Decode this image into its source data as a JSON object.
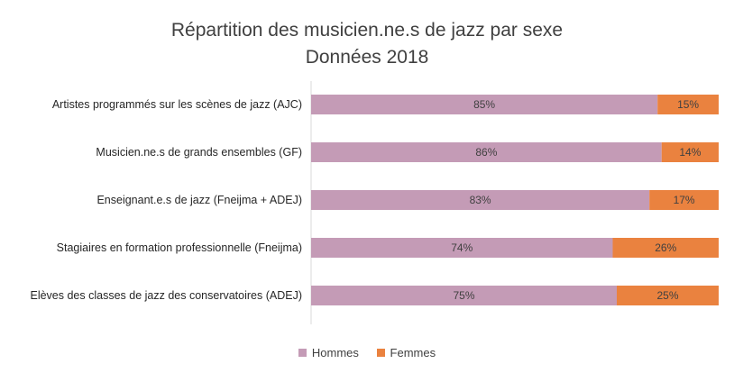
{
  "chart_data": {
    "type": "bar",
    "orientation": "horizontal",
    "stacked": true,
    "title": "Répartition des musicien.ne.s de jazz par sexe",
    "subtitle": "Données 2018",
    "categories": [
      "Artistes programmés sur les scènes de jazz (AJC)",
      "Musicien.ne.s de grands ensembles (GF)",
      "Enseignant.e.s de jazz (Fneijma + ADEJ)",
      "Stagiaires en formation professionnelle (Fneijma)",
      "Elèves des classes de jazz des conservatoires (ADEJ)"
    ],
    "series": [
      {
        "name": "Hommes",
        "values": [
          85,
          86,
          83,
          74,
          75
        ],
        "labels": [
          "85%",
          "86%",
          "83%",
          "74%",
          "75%"
        ],
        "color": "#c49bb6"
      },
      {
        "name": "Femmes",
        "values": [
          15,
          14,
          17,
          26,
          25
        ],
        "labels": [
          "15%",
          "14%",
          "17%",
          "26%",
          "25%"
        ],
        "color": "#ea823f"
      }
    ],
    "xlim": [
      0,
      100
    ],
    "grid": false,
    "legend_position": "bottom"
  }
}
